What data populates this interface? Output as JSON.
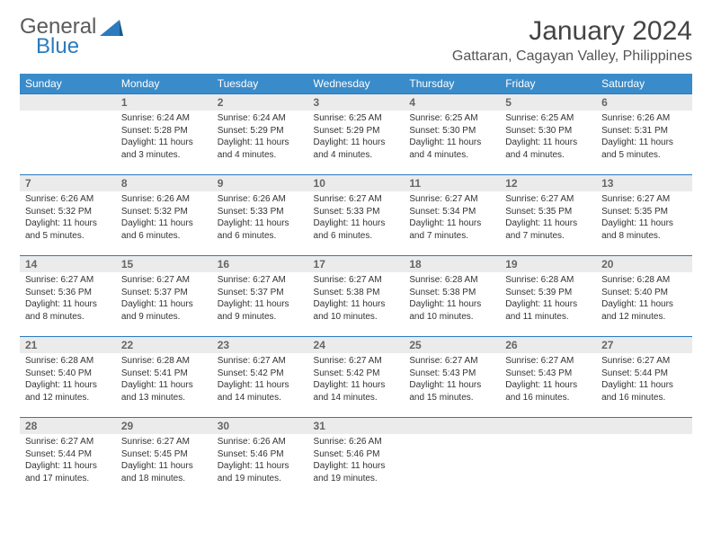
{
  "logo": {
    "word1": "General",
    "word2": "Blue"
  },
  "title": "January 2024",
  "location": "Gattaran, Cagayan Valley, Philippines",
  "colors": {
    "header_bg": "#3a8bc9",
    "daynum_bg": "#ebebeb",
    "border": "#2b7bbd"
  },
  "weekdays": [
    "Sunday",
    "Monday",
    "Tuesday",
    "Wednesday",
    "Thursday",
    "Friday",
    "Saturday"
  ],
  "weeks": [
    [
      null,
      {
        "n": "1",
        "sr": "6:24 AM",
        "ss": "5:28 PM",
        "d1": "Daylight: 11 hours",
        "d2": "and 3 minutes."
      },
      {
        "n": "2",
        "sr": "6:24 AM",
        "ss": "5:29 PM",
        "d1": "Daylight: 11 hours",
        "d2": "and 4 minutes."
      },
      {
        "n": "3",
        "sr": "6:25 AM",
        "ss": "5:29 PM",
        "d1": "Daylight: 11 hours",
        "d2": "and 4 minutes."
      },
      {
        "n": "4",
        "sr": "6:25 AM",
        "ss": "5:30 PM",
        "d1": "Daylight: 11 hours",
        "d2": "and 4 minutes."
      },
      {
        "n": "5",
        "sr": "6:25 AM",
        "ss": "5:30 PM",
        "d1": "Daylight: 11 hours",
        "d2": "and 4 minutes."
      },
      {
        "n": "6",
        "sr": "6:26 AM",
        "ss": "5:31 PM",
        "d1": "Daylight: 11 hours",
        "d2": "and 5 minutes."
      }
    ],
    [
      {
        "n": "7",
        "sr": "6:26 AM",
        "ss": "5:32 PM",
        "d1": "Daylight: 11 hours",
        "d2": "and 5 minutes."
      },
      {
        "n": "8",
        "sr": "6:26 AM",
        "ss": "5:32 PM",
        "d1": "Daylight: 11 hours",
        "d2": "and 6 minutes."
      },
      {
        "n": "9",
        "sr": "6:26 AM",
        "ss": "5:33 PM",
        "d1": "Daylight: 11 hours",
        "d2": "and 6 minutes."
      },
      {
        "n": "10",
        "sr": "6:27 AM",
        "ss": "5:33 PM",
        "d1": "Daylight: 11 hours",
        "d2": "and 6 minutes."
      },
      {
        "n": "11",
        "sr": "6:27 AM",
        "ss": "5:34 PM",
        "d1": "Daylight: 11 hours",
        "d2": "and 7 minutes."
      },
      {
        "n": "12",
        "sr": "6:27 AM",
        "ss": "5:35 PM",
        "d1": "Daylight: 11 hours",
        "d2": "and 7 minutes."
      },
      {
        "n": "13",
        "sr": "6:27 AM",
        "ss": "5:35 PM",
        "d1": "Daylight: 11 hours",
        "d2": "and 8 minutes."
      }
    ],
    [
      {
        "n": "14",
        "sr": "6:27 AM",
        "ss": "5:36 PM",
        "d1": "Daylight: 11 hours",
        "d2": "and 8 minutes."
      },
      {
        "n": "15",
        "sr": "6:27 AM",
        "ss": "5:37 PM",
        "d1": "Daylight: 11 hours",
        "d2": "and 9 minutes."
      },
      {
        "n": "16",
        "sr": "6:27 AM",
        "ss": "5:37 PM",
        "d1": "Daylight: 11 hours",
        "d2": "and 9 minutes."
      },
      {
        "n": "17",
        "sr": "6:27 AM",
        "ss": "5:38 PM",
        "d1": "Daylight: 11 hours",
        "d2": "and 10 minutes."
      },
      {
        "n": "18",
        "sr": "6:28 AM",
        "ss": "5:38 PM",
        "d1": "Daylight: 11 hours",
        "d2": "and 10 minutes."
      },
      {
        "n": "19",
        "sr": "6:28 AM",
        "ss": "5:39 PM",
        "d1": "Daylight: 11 hours",
        "d2": "and 11 minutes."
      },
      {
        "n": "20",
        "sr": "6:28 AM",
        "ss": "5:40 PM",
        "d1": "Daylight: 11 hours",
        "d2": "and 12 minutes."
      }
    ],
    [
      {
        "n": "21",
        "sr": "6:28 AM",
        "ss": "5:40 PM",
        "d1": "Daylight: 11 hours",
        "d2": "and 12 minutes."
      },
      {
        "n": "22",
        "sr": "6:28 AM",
        "ss": "5:41 PM",
        "d1": "Daylight: 11 hours",
        "d2": "and 13 minutes."
      },
      {
        "n": "23",
        "sr": "6:27 AM",
        "ss": "5:42 PM",
        "d1": "Daylight: 11 hours",
        "d2": "and 14 minutes."
      },
      {
        "n": "24",
        "sr": "6:27 AM",
        "ss": "5:42 PM",
        "d1": "Daylight: 11 hours",
        "d2": "and 14 minutes."
      },
      {
        "n": "25",
        "sr": "6:27 AM",
        "ss": "5:43 PM",
        "d1": "Daylight: 11 hours",
        "d2": "and 15 minutes."
      },
      {
        "n": "26",
        "sr": "6:27 AM",
        "ss": "5:43 PM",
        "d1": "Daylight: 11 hours",
        "d2": "and 16 minutes."
      },
      {
        "n": "27",
        "sr": "6:27 AM",
        "ss": "5:44 PM",
        "d1": "Daylight: 11 hours",
        "d2": "and 16 minutes."
      }
    ],
    [
      {
        "n": "28",
        "sr": "6:27 AM",
        "ss": "5:44 PM",
        "d1": "Daylight: 11 hours",
        "d2": "and 17 minutes."
      },
      {
        "n": "29",
        "sr": "6:27 AM",
        "ss": "5:45 PM",
        "d1": "Daylight: 11 hours",
        "d2": "and 18 minutes."
      },
      {
        "n": "30",
        "sr": "6:26 AM",
        "ss": "5:46 PM",
        "d1": "Daylight: 11 hours",
        "d2": "and 19 minutes."
      },
      {
        "n": "31",
        "sr": "6:26 AM",
        "ss": "5:46 PM",
        "d1": "Daylight: 11 hours",
        "d2": "and 19 minutes."
      },
      null,
      null,
      null
    ]
  ],
  "labels": {
    "sunrise": "Sunrise: ",
    "sunset": "Sunset: "
  }
}
